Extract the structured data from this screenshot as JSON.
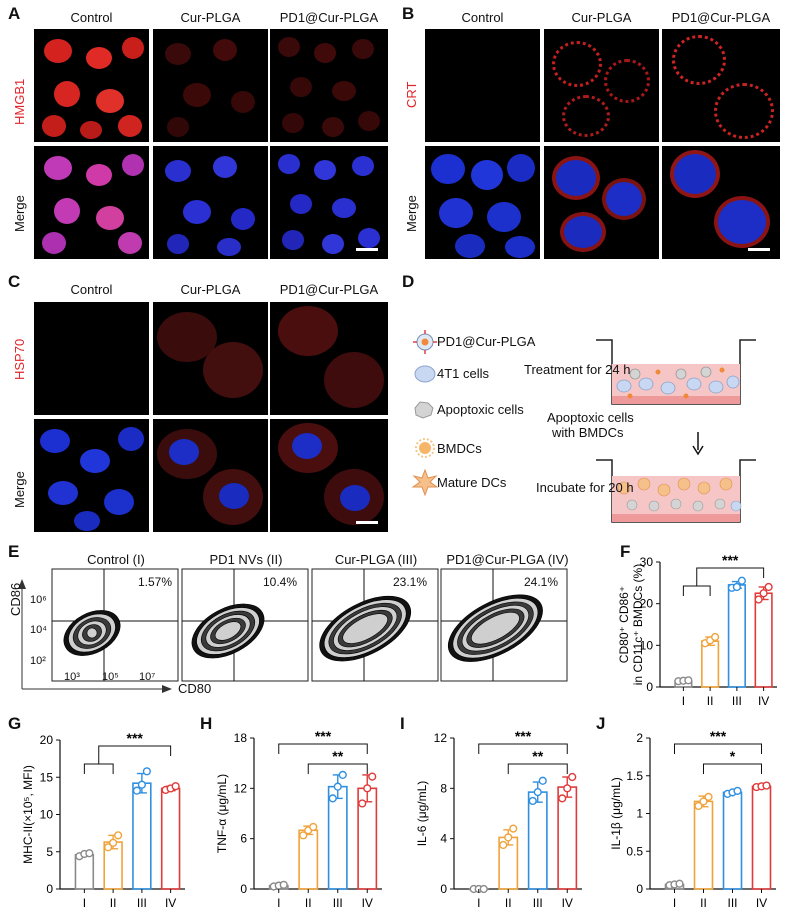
{
  "panels": {
    "A": {
      "label": "A",
      "stain": "HMGB1",
      "merge": "Merge",
      "columns": [
        "Control",
        "Cur-PLGA",
        "PD1@Cur-PLGA"
      ]
    },
    "B": {
      "label": "B",
      "stain": "CRT",
      "merge": "Merge",
      "columns": [
        "Control",
        "Cur-PLGA",
        "PD1@Cur-PLGA"
      ]
    },
    "C": {
      "label": "C",
      "stain": "HSP70",
      "merge": "Merge",
      "columns": [
        "Control",
        "Cur-PLGA",
        "PD1@Cur-PLGA"
      ]
    },
    "D": {
      "label": "D",
      "legend": [
        "PD1@Cur-PLGA",
        "4T1 cells",
        "Apoptoxic cells",
        "BMDCs",
        "Mature DCs"
      ],
      "step1": "Treatment for 24 h",
      "arrow_label_1": "Apoptoxic cells",
      "arrow_label_2": "with BMDCs",
      "step2": "Incubate for 20 h"
    },
    "E": {
      "label": "E",
      "titles": [
        "Control (I)",
        "PD1 NVs (II)",
        "Cur-PLGA (III)",
        "PD1@Cur-PLGA (IV)"
      ],
      "percents": [
        "1.57%",
        "10.4%",
        "23.1%",
        "24.1%"
      ],
      "ylabel": "CD86",
      "xlabel": "CD80",
      "yticks": [
        "10⁶",
        "10⁴",
        "10²"
      ],
      "xticks": [
        "10³",
        "10⁵",
        "10⁷"
      ]
    }
  },
  "colors": {
    "I": "#8a8a8a",
    "II": "#f0a33a",
    "III": "#2f8fe0",
    "IV": "#e03a3a"
  },
  "chart_data": [
    {
      "id": "F",
      "type": "bar",
      "label": "F",
      "categories": [
        "I",
        "II",
        "III",
        "IV"
      ],
      "values": [
        1.5,
        11,
        24.5,
        22.5
      ],
      "points": [
        [
          1.4,
          1.5,
          1.6
        ],
        [
          10.5,
          11.2,
          12
        ],
        [
          23.8,
          24,
          25.5
        ],
        [
          21,
          22.5,
          24
        ]
      ],
      "errors": [
        0.2,
        1,
        0.8,
        1.5
      ],
      "ylabel": "CD80⁺ CD86⁺ in CD11c⁺ BMDCs (%)",
      "ylim": [
        0,
        30
      ],
      "yticks": [
        "0",
        "10",
        "20",
        "30"
      ],
      "sig": [
        {
          "from": "I",
          "from2": "II",
          "to": "IV",
          "text": "***",
          "bracket": "group"
        }
      ]
    },
    {
      "id": "G",
      "type": "bar",
      "label": "G",
      "categories": [
        "I",
        "II",
        "III",
        "IV"
      ],
      "values": [
        4.6,
        6.3,
        14.2,
        13.5
      ],
      "points": [
        [
          4.4,
          4.7,
          4.8
        ],
        [
          5.6,
          6.2,
          7.2
        ],
        [
          13.2,
          14,
          15.8
        ],
        [
          13.3,
          13.5,
          13.8
        ]
      ],
      "errors": [
        0.2,
        0.9,
        1.3,
        0.3
      ],
      "ylabel": "MHC-II(×10⁵, MFI)",
      "ylim": [
        0,
        20
      ],
      "yticks": [
        "0",
        "5",
        "10",
        "15",
        "20"
      ],
      "sig": [
        {
          "from": "I",
          "from2": "II",
          "to": "IV",
          "text": "***",
          "bracket": "group"
        }
      ]
    },
    {
      "id": "H",
      "type": "bar",
      "label": "H",
      "categories": [
        "I",
        "II",
        "III",
        "IV"
      ],
      "values": [
        0.4,
        7.0,
        12.2,
        12.0
      ],
      "points": [
        [
          0.3,
          0.4,
          0.5
        ],
        [
          6.4,
          7.0,
          7.4
        ],
        [
          10.8,
          12.2,
          13.6
        ],
        [
          10.2,
          12.0,
          13.4
        ]
      ],
      "errors": [
        0.1,
        0.5,
        1.4,
        1.6
      ],
      "ylabel": "TNF-α (μg/mL)",
      "ylim": [
        0,
        18
      ],
      "yticks": [
        "0",
        "6",
        "12",
        "18"
      ],
      "sig": [
        {
          "from": "I",
          "to": "IV",
          "text": "***",
          "bracket": "simple"
        },
        {
          "from": "II",
          "to": "IV",
          "text": "**",
          "bracket": "simple"
        }
      ]
    },
    {
      "id": "I",
      "type": "bar",
      "label": "I",
      "categories": [
        "I",
        "II",
        "III",
        "IV"
      ],
      "values": [
        0.0,
        4.1,
        7.7,
        8.1
      ],
      "points": [
        [
          0.0,
          0.0,
          0.0
        ],
        [
          3.5,
          4.1,
          4.8
        ],
        [
          7.0,
          7.7,
          8.6
        ],
        [
          7.2,
          8.0,
          8.9
        ]
      ],
      "errors": [
        0.05,
        0.6,
        0.8,
        0.8
      ],
      "ylabel": "IL-6 (μg/mL)",
      "ylim": [
        0,
        12
      ],
      "yticks": [
        "0",
        "4",
        "8",
        "12"
      ],
      "sig": [
        {
          "from": "I",
          "to": "IV",
          "text": "***",
          "bracket": "simple"
        },
        {
          "from": "II",
          "to": "IV",
          "text": "**",
          "bracket": "simple"
        }
      ]
    },
    {
      "id": "J",
      "type": "bar",
      "label": "J",
      "categories": [
        "I",
        "II",
        "III",
        "IV"
      ],
      "values": [
        0.06,
        1.16,
        1.28,
        1.36
      ],
      "points": [
        [
          0.05,
          0.06,
          0.07
        ],
        [
          1.1,
          1.16,
          1.22
        ],
        [
          1.26,
          1.28,
          1.3
        ],
        [
          1.35,
          1.36,
          1.37
        ]
      ],
      "errors": [
        0.01,
        0.07,
        0.02,
        0.01
      ],
      "ylabel": "IL-1β (μg/mL)",
      "ylim": [
        0,
        2
      ],
      "yticks": [
        "0",
        "0.5",
        "1",
        "1.5",
        "2"
      ],
      "sig": [
        {
          "from": "I",
          "to": "IV",
          "text": "***",
          "bracket": "simple"
        },
        {
          "from": "II",
          "to": "IV",
          "text": "*",
          "bracket": "simple"
        }
      ]
    }
  ]
}
